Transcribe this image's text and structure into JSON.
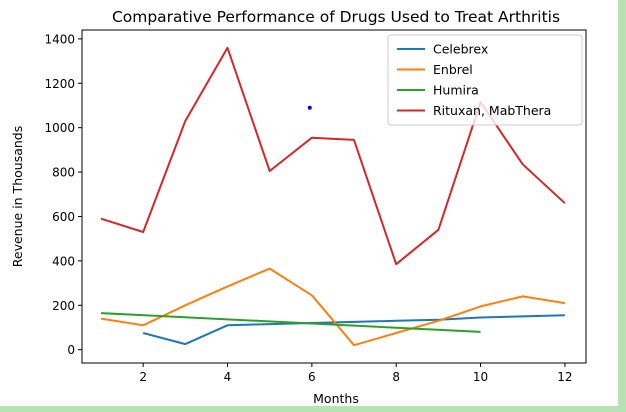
{
  "chart_data": {
    "type": "line",
    "title": "Comparative Performance of Drugs Used to Treat Arthritis",
    "xlabel": "Months",
    "ylabel": "Revenue in Thousands",
    "xlim": [
      0.55,
      12.5
    ],
    "ylim": [
      -60,
      1440
    ],
    "xticks": [
      2,
      4,
      6,
      8,
      10,
      12
    ],
    "yticks": [
      0,
      200,
      400,
      600,
      800,
      1000,
      1200,
      1400
    ],
    "grid": false,
    "legend_position": "top-right",
    "series": [
      {
        "name": "Celebrex",
        "color": "#1f77b4",
        "x": [
          2,
          3,
          4,
          5,
          6,
          7,
          8,
          9,
          10,
          11,
          12
        ],
        "y": [
          75,
          25,
          110,
          115,
          120,
          125,
          130,
          135,
          145,
          150,
          155
        ]
      },
      {
        "name": "Enbrel",
        "color": "#ff7f0e",
        "x": [
          1,
          2,
          3,
          4,
          5,
          6,
          7,
          8,
          9,
          10,
          11,
          12
        ],
        "y": [
          140,
          110,
          200,
          285,
          365,
          245,
          20,
          75,
          130,
          195,
          240,
          210
        ]
      },
      {
        "name": "Humira",
        "color": "#2ca02c",
        "x": [
          1,
          10
        ],
        "y": [
          165,
          80
        ]
      },
      {
        "name": "Rituxan, MabThera",
        "color": "#d62728",
        "x": [
          1,
          2,
          3,
          4,
          5,
          6,
          7,
          8,
          9,
          10,
          11,
          12
        ],
        "y": [
          590,
          530,
          1030,
          1360,
          805,
          955,
          945,
          385,
          540,
          1115,
          835,
          660
        ]
      }
    ],
    "annotations": [
      {
        "type": "point",
        "x": 5.95,
        "y": 1090,
        "color": "#0000ff"
      }
    ]
  }
}
